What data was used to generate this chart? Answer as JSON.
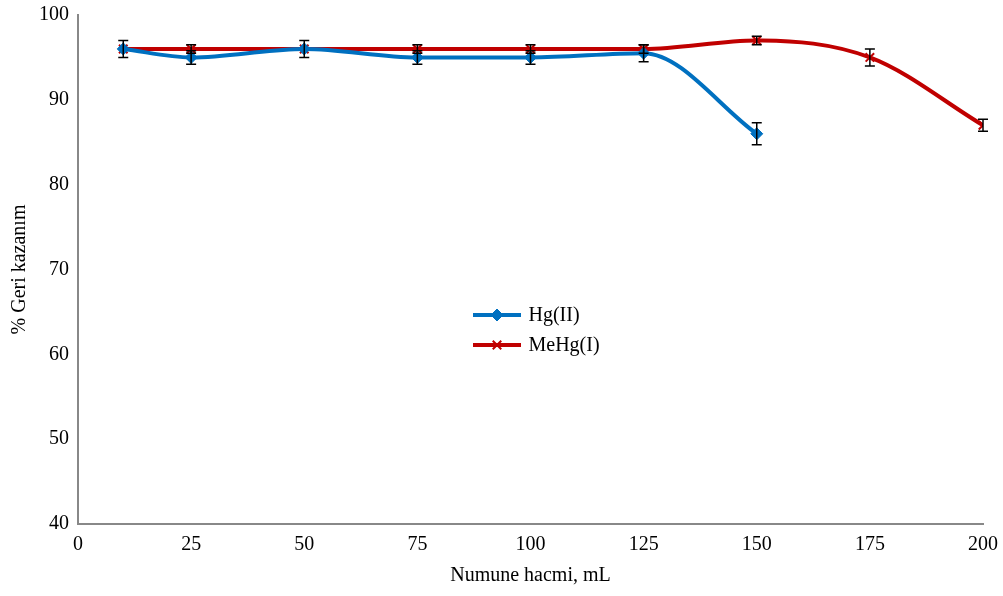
{
  "chart_data": {
    "type": "line",
    "xlabel": "Numune hacmi, mL",
    "ylabel": "% Geri kazanım",
    "xlim": [
      0,
      200
    ],
    "xticks": [
      0,
      25,
      50,
      75,
      100,
      125,
      150,
      175,
      200
    ],
    "ylim": [
      40,
      100
    ],
    "yticks": [
      40,
      50,
      60,
      70,
      80,
      90,
      100
    ],
    "grid": false,
    "legend": "center",
    "series": [
      {
        "name": "Hg(II)",
        "color": "#0070c0",
        "marker": "diamond",
        "x": [
          10,
          25,
          50,
          75,
          100,
          125,
          150
        ],
        "values": [
          96,
          95,
          96,
          95,
          95,
          95.5,
          86
        ],
        "errors": [
          1,
          0.8,
          1,
          0.8,
          0.8,
          1,
          1.3
        ]
      },
      {
        "name": "MeHg(I)",
        "color": "#c00000",
        "marker": "cross",
        "x": [
          10,
          25,
          50,
          75,
          100,
          125,
          150,
          175,
          200
        ],
        "values": [
          96,
          96,
          96,
          96,
          96,
          96,
          97,
          95,
          87
        ],
        "errors": [
          null,
          0.5,
          null,
          0.5,
          0.5,
          0.5,
          0.5,
          1,
          0.7
        ]
      }
    ]
  }
}
